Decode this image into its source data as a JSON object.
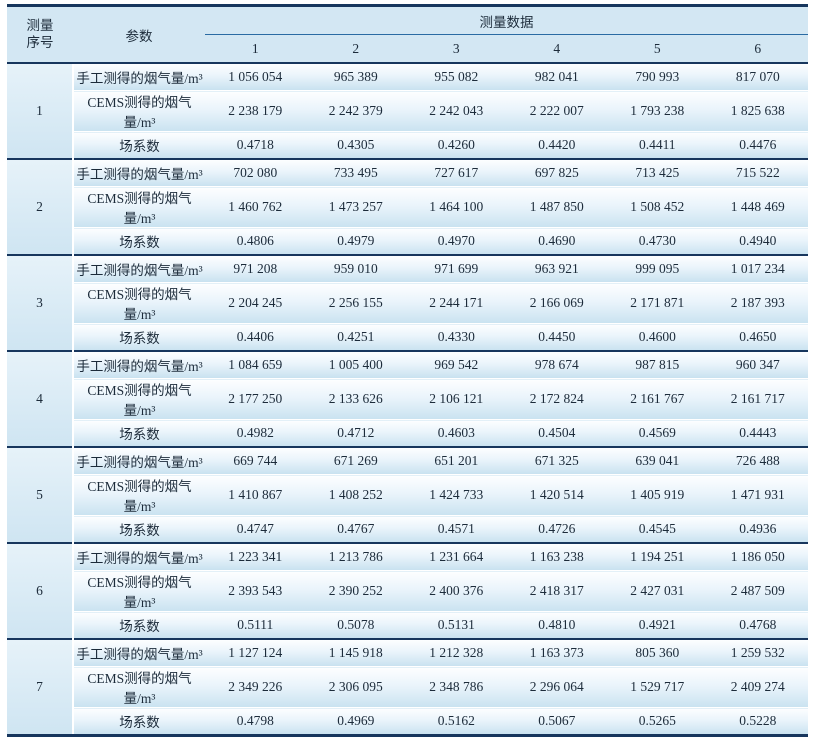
{
  "colors": {
    "border_navy": "#17365d",
    "header_bg": "#d3e7f3",
    "row_gradient_bottom": "#c9e2f0",
    "thin_rule_blue": "#2a6ba3",
    "text": "#1c2b3a"
  },
  "table": {
    "header": {
      "seq_label_lines": [
        "测量",
        "序号"
      ],
      "param_label": "参数",
      "data_label": "测量数据",
      "data_columns": [
        "1",
        "2",
        "3",
        "4",
        "5",
        "6"
      ]
    },
    "row_labels": [
      "手工测得的烟气量/m³",
      "CEMS测得的烟气量/m³",
      "场系数"
    ],
    "groups": [
      {
        "seq": "1",
        "rows": [
          [
            "1 056 054",
            "965 389",
            "955 082",
            "982 041",
            "790 993",
            "817 070"
          ],
          [
            "2 238 179",
            "2 242 379",
            "2 242 043",
            "2 222 007",
            "1 793 238",
            "1 825 638"
          ],
          [
            "0.4718",
            "0.4305",
            "0.4260",
            "0.4420",
            "0.4411",
            "0.4476"
          ]
        ]
      },
      {
        "seq": "2",
        "rows": [
          [
            "702 080",
            "733 495",
            "727 617",
            "697 825",
            "713 425",
            "715 522"
          ],
          [
            "1 460 762",
            "1 473 257",
            "1 464 100",
            "1 487 850",
            "1 508 452",
            "1 448 469"
          ],
          [
            "0.4806",
            "0.4979",
            "0.4970",
            "0.4690",
            "0.4730",
            "0.4940"
          ]
        ]
      },
      {
        "seq": "3",
        "rows": [
          [
            "971 208",
            "959 010",
            "971 699",
            "963 921",
            "999 095",
            "1 017 234"
          ],
          [
            "2 204 245",
            "2 256 155",
            "2 244 171",
            "2 166 069",
            "2 171 871",
            "2 187 393"
          ],
          [
            "0.4406",
            "0.4251",
            "0.4330",
            "0.4450",
            "0.4600",
            "0.4650"
          ]
        ]
      },
      {
        "seq": "4",
        "rows": [
          [
            "1 084 659",
            "1 005 400",
            "969 542",
            "978 674",
            "987 815",
            "960 347"
          ],
          [
            "2 177 250",
            "2 133 626",
            "2 106 121",
            "2 172 824",
            "2 161 767",
            "2 161 717"
          ],
          [
            "0.4982",
            "0.4712",
            "0.4603",
            "0.4504",
            "0.4569",
            "0.4443"
          ]
        ]
      },
      {
        "seq": "5",
        "rows": [
          [
            "669 744",
            "671 269",
            "651 201",
            "671 325",
            "639 041",
            "726 488"
          ],
          [
            "1 410 867",
            "1 408 252",
            "1 424 733",
            "1 420 514",
            "1 405 919",
            "1 471 931"
          ],
          [
            "0.4747",
            "0.4767",
            "0.4571",
            "0.4726",
            "0.4545",
            "0.4936"
          ]
        ]
      },
      {
        "seq": "6",
        "rows": [
          [
            "1 223 341",
            "1 213 786",
            "1 231 664",
            "1 163 238",
            "1 194 251",
            "1 186 050"
          ],
          [
            "2 393 543",
            "2 390 252",
            "2 400 376",
            "2 418 317",
            "2 427 031",
            "2 487 509"
          ],
          [
            "0.5111",
            "0.5078",
            "0.5131",
            "0.4810",
            "0.4921",
            "0.4768"
          ]
        ]
      },
      {
        "seq": "7",
        "rows": [
          [
            "1 127 124",
            "1 145 918",
            "1 212 328",
            "1 163 373",
            "805 360",
            "1 259 532"
          ],
          [
            "2 349 226",
            "2 306 095",
            "2 348 786",
            "2 296 064",
            "1 529 717",
            "2 409 274"
          ],
          [
            "0.4798",
            "0.4969",
            "0.5162",
            "0.5067",
            "0.5265",
            "0.5228"
          ]
        ]
      }
    ]
  }
}
